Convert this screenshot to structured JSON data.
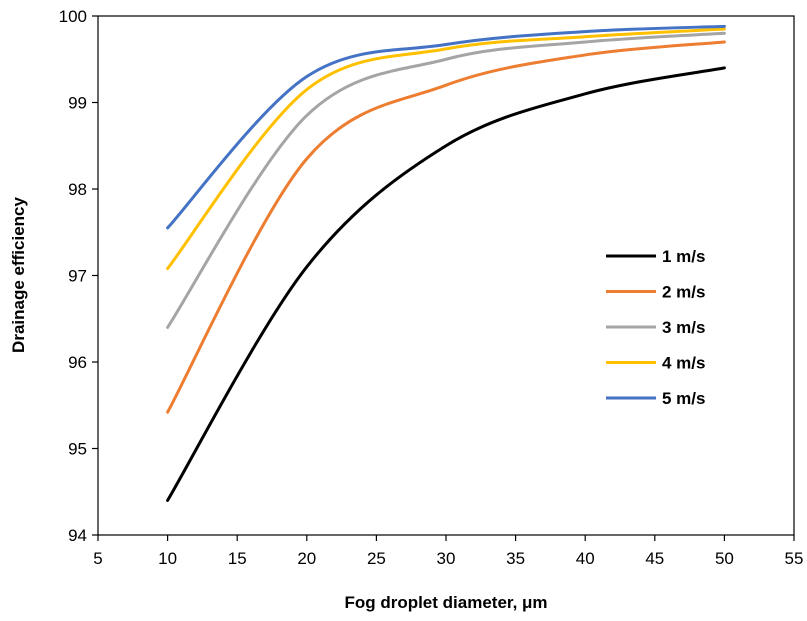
{
  "chart_data": {
    "type": "line",
    "xlabel": "Fog droplet diameter, μm",
    "ylabel": "Drainage  efficiency",
    "xlim": [
      5,
      55
    ],
    "ylim": [
      94,
      100
    ],
    "xticks": [
      5,
      10,
      15,
      20,
      25,
      30,
      35,
      40,
      45,
      50,
      55
    ],
    "yticks": [
      94,
      95,
      96,
      97,
      98,
      99,
      100
    ],
    "grid": false,
    "legend_position": "right",
    "x": [
      10,
      20,
      30,
      40,
      50
    ],
    "series": [
      {
        "name": "1 m/s",
        "color": "#000000",
        "values": [
          94.4,
          97.1,
          98.5,
          99.1,
          99.4
        ]
      },
      {
        "name": "2 m/s",
        "color": "#ED7D31",
        "values": [
          95.42,
          98.35,
          99.2,
          99.55,
          99.7
        ]
      },
      {
        "name": "3 m/s",
        "color": "#A5A5A5",
        "values": [
          96.4,
          98.85,
          99.5,
          99.7,
          99.8
        ]
      },
      {
        "name": "4 m/s",
        "color": "#FFC000",
        "values": [
          97.08,
          99.15,
          99.62,
          99.76,
          99.85
        ]
      },
      {
        "name": "5 m/s",
        "color": "#4472C4",
        "values": [
          97.55,
          99.3,
          99.67,
          99.82,
          99.88
        ]
      }
    ]
  }
}
